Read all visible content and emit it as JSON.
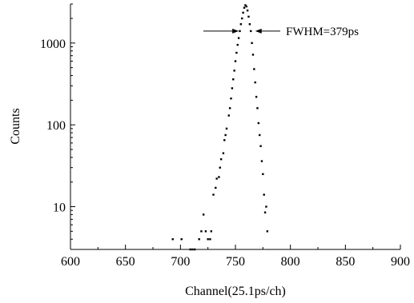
{
  "chart_data": {
    "type": "scatter",
    "xlabel": "Channel(25.1ps/ch)",
    "ylabel": "Counts",
    "xlim": [
      600,
      900
    ],
    "ylim": [
      3,
      3000
    ],
    "y_scale": "log",
    "grid": false,
    "legend": "none",
    "point_color": "#000000",
    "x_ticks": [
      600,
      650,
      700,
      750,
      800,
      850,
      900
    ],
    "x_tick_labels": [
      "600",
      "650",
      "700",
      "750",
      "800",
      "850",
      "900"
    ],
    "y_ticks": [
      10,
      100,
      1000
    ],
    "y_tick_labels": [
      "10",
      "100",
      "1000"
    ],
    "annotation": {
      "text": "FWHM=379ps",
      "y": 1400,
      "x_left": 753,
      "x_right": 768
    },
    "series": [
      {
        "x": [
          693,
          701,
          709,
          711,
          713,
          717,
          719,
          721,
          723,
          725,
          727,
          728,
          730,
          732,
          733,
          735,
          736,
          737,
          739,
          740,
          741,
          742,
          744,
          745,
          746,
          747,
          748,
          749,
          750,
          751,
          752,
          753,
          754,
          755,
          756,
          757,
          758,
          759,
          760,
          761,
          762,
          763,
          764,
          765,
          766,
          767,
          768,
          769,
          770,
          771,
          772,
          773,
          774,
          775,
          776,
          777,
          778,
          779
        ],
        "y": [
          4,
          4,
          3,
          3,
          3,
          4,
          5,
          8,
          5,
          4,
          4,
          5,
          14,
          17,
          22,
          23,
          30,
          38,
          45,
          65,
          75,
          90,
          130,
          160,
          210,
          280,
          360,
          460,
          600,
          760,
          950,
          1150,
          1400,
          1700,
          2000,
          2350,
          2700,
          2900,
          2800,
          2500,
          2100,
          1700,
          1400,
          1000,
          720,
          480,
          330,
          220,
          160,
          105,
          75,
          55,
          36,
          25,
          14,
          8.5,
          10,
          5
        ]
      }
    ]
  }
}
